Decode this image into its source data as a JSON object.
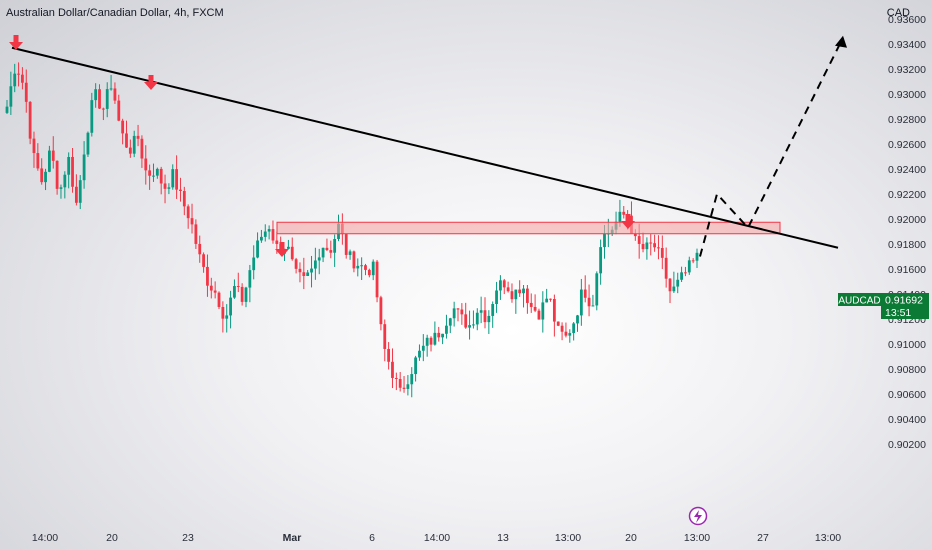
{
  "header": {
    "title": "Australian Dollar/Canadian Dollar, 4h, FXCM",
    "unit": "CAD"
  },
  "price_tag": {
    "symbol": "AUDCAD",
    "price": "0.91692",
    "countdown": "13:51"
  },
  "colors": {
    "up": "#089981",
    "down": "#f23645",
    "line": "#000000",
    "zone_fill": "#f6a5a5",
    "tag": "#0b7a35",
    "lightning": "#9c27b0"
  },
  "icons": [
    "lightning-icon",
    "arrow-down-icon"
  ],
  "chart_data": {
    "type": "candlestick",
    "title": "Australian Dollar/Canadian Dollar, 4h, FXCM",
    "ylabel": "CAD",
    "ylim": [
      0.9014,
      0.9362
    ],
    "y_ticks": [
      "0.93600",
      "0.93400",
      "0.93200",
      "0.93000",
      "0.92800",
      "0.92600",
      "0.92400",
      "0.92200",
      "0.92000",
      "0.91800",
      "0.91600",
      "0.91400",
      "0.91200",
      "0.91000",
      "0.90800",
      "0.90600",
      "0.90400",
      "0.90200"
    ],
    "x_ticks": [
      "14:00",
      "20",
      "23",
      "Mar",
      "6",
      "14:00",
      "13",
      "13:00",
      "20",
      "13:00",
      "27",
      "13:00"
    ],
    "close_path": [
      0.929,
      0.9325,
      0.9305,
      0.925,
      0.923,
      0.9255,
      0.922,
      0.925,
      0.921,
      0.9265,
      0.93,
      0.9288,
      0.931,
      0.927,
      0.9255,
      0.9265,
      0.9235,
      0.924,
      0.9225,
      0.9235,
      0.9215,
      0.92,
      0.917,
      0.915,
      0.914,
      0.912,
      0.9145,
      0.9135,
      0.9165,
      0.9185,
      0.9195,
      0.9175,
      0.918,
      0.9155,
      0.915,
      0.916,
      0.918,
      0.9175,
      0.9195,
      0.917,
      0.9165,
      0.916,
      0.916,
      0.91,
      0.908,
      0.906,
      0.9075,
      0.909,
      0.91,
      0.9105,
      0.9115,
      0.913,
      0.912,
      0.9115,
      0.913,
      0.912,
      0.9145,
      0.915,
      0.914,
      0.9148,
      0.913,
      0.9125,
      0.914,
      0.911,
      0.9105,
      0.912,
      0.9145,
      0.913,
      0.9185,
      0.919,
      0.92,
      0.9205,
      0.918,
      0.9175,
      0.918,
      0.9165,
      0.914,
      0.915,
      0.916,
      0.9169
    ],
    "trendline": {
      "from": {
        "x": "start",
        "y": 0.9337
      },
      "to": {
        "x": "27",
        "y": 0.9177
      }
    },
    "resistance_zone": [
      0.9193,
      0.9199
    ],
    "projection": [
      0.917,
      0.922,
      0.9193,
      0.9345
    ],
    "markers": [
      "arrow-down",
      "arrow-down",
      "arrow-down",
      "arrow-down"
    ],
    "grid": false,
    "legend": "none"
  }
}
